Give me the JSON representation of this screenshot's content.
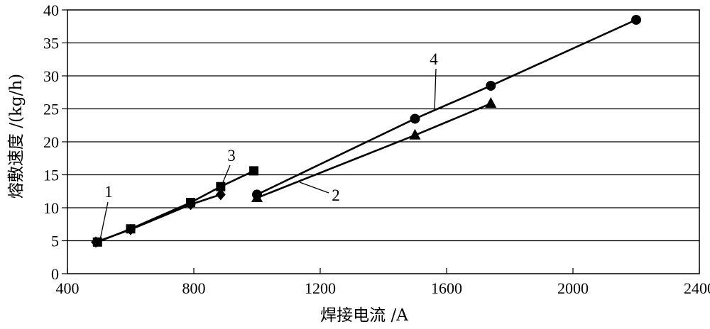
{
  "chart_data": {
    "type": "line",
    "title": "",
    "xlabel": "焊接电流 /A",
    "ylabel": "熔敷速度 /(kg/h)",
    "xlim": [
      400,
      2400
    ],
    "ylim": [
      0,
      40
    ],
    "xticks": [
      400,
      800,
      1200,
      1600,
      2000,
      2400
    ],
    "yticks": [
      0,
      5,
      10,
      15,
      20,
      25,
      30,
      35,
      40
    ],
    "grid": "horizontal",
    "legend": "none",
    "series": [
      {
        "name": "1",
        "marker": "diamond",
        "x": [
          490,
          600,
          790,
          885
        ],
        "y": [
          4.8,
          6.7,
          10.5,
          12.0
        ]
      },
      {
        "name": "2",
        "marker": "triangle",
        "x": [
          1000,
          1500,
          1740
        ],
        "y": [
          11.5,
          21.0,
          25.8
        ]
      },
      {
        "name": "3",
        "marker": "square",
        "x": [
          495,
          600,
          790,
          885,
          990
        ],
        "y": [
          4.8,
          6.8,
          10.8,
          13.2,
          15.6
        ]
      },
      {
        "name": "4",
        "marker": "circle",
        "x": [
          1000,
          1500,
          1740,
          2200
        ],
        "y": [
          12.0,
          23.5,
          28.5,
          38.5
        ]
      }
    ]
  }
}
